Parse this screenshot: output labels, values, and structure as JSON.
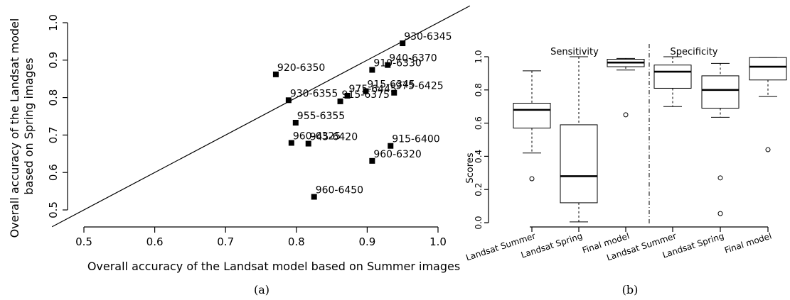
{
  "chart_data": [
    {
      "type": "scatter",
      "panel_label": "(a)",
      "xlabel": "Overall accuracy of the Landsat model based on Summer images",
      "ylabel_lines": [
        "Overall accuracy of the Landsat model",
        "based on Spring images"
      ],
      "xlim": [
        0.48,
        1.02
      ],
      "ylim": [
        0.49,
        1.02
      ],
      "xticks": [
        0.5,
        0.6,
        0.7,
        0.8,
        0.9,
        1.0
      ],
      "xtick_labels": [
        "0.5",
        "0.6",
        "0.7",
        "0.8",
        "0.9",
        "1.0"
      ],
      "yticks": [
        0.5,
        0.6,
        0.7,
        0.8,
        0.9,
        1.0
      ],
      "ytick_labels": [
        "0.5",
        "0.6",
        "0.7",
        "0.8",
        "0.9",
        "1.0"
      ],
      "reference_line": "y = x",
      "points": [
        {
          "label": "930-6345",
          "x": 0.95,
          "y": 0.945
        },
        {
          "label": "940-6370",
          "x": 0.929,
          "y": 0.887
        },
        {
          "label": "910-6330",
          "x": 0.907,
          "y": 0.874
        },
        {
          "label": "920-6350",
          "x": 0.771,
          "y": 0.862
        },
        {
          "label": "915-6345",
          "x": 0.898,
          "y": 0.817
        },
        {
          "label": "975-6425",
          "x": 0.938,
          "y": 0.813
        },
        {
          "label": "975-6445",
          "x": 0.872,
          "y": 0.805
        },
        {
          "label": "930-6355",
          "x": 0.789,
          "y": 0.793
        },
        {
          "label": "915-6375",
          "x": 0.862,
          "y": 0.79
        },
        {
          "label": "955-6355",
          "x": 0.799,
          "y": 0.733
        },
        {
          "label": "960-6325",
          "x": 0.793,
          "y": 0.679
        },
        {
          "label": "945-6420",
          "x": 0.817,
          "y": 0.677
        },
        {
          "label": "915-6400",
          "x": 0.933,
          "y": 0.671
        },
        {
          "label": "960-6320",
          "x": 0.907,
          "y": 0.631
        },
        {
          "label": "960-6450",
          "x": 0.825,
          "y": 0.535
        }
      ]
    },
    {
      "type": "box",
      "panel_label": "(b)",
      "ylabel": "Scores",
      "ylim": [
        0.0,
        1.0
      ],
      "yticks": [
        0.0,
        0.2,
        0.4,
        0.6,
        0.8,
        1.0
      ],
      "ytick_labels": [
        "0.0",
        "0.2",
        "0.4",
        "0.6",
        "0.8",
        "1.0"
      ],
      "groups": [
        {
          "name": "Sensitivity",
          "categories": [
            "Landsat Summer",
            "Landsat Spring",
            "Final model"
          ]
        },
        {
          "name": "Specificity",
          "categories": [
            "Landsat Summer",
            "Landsat Spring",
            "Final model"
          ]
        }
      ],
      "boxes": [
        {
          "group": "Sensitivity",
          "category": "Landsat Summer",
          "whisker_low": 0.42,
          "q1": 0.57,
          "median": 0.68,
          "q3": 0.72,
          "whisker_high": 0.915,
          "outliers": [
            0.265
          ]
        },
        {
          "group": "Sensitivity",
          "category": "Landsat Spring",
          "whisker_low": 0.005,
          "q1": 0.12,
          "median": 0.28,
          "q3": 0.59,
          "whisker_high": 1.0,
          "outliers": []
        },
        {
          "group": "Sensitivity",
          "category": "Final model",
          "whisker_low": 0.92,
          "q1": 0.94,
          "median": 0.965,
          "q3": 0.985,
          "whisker_high": 0.99,
          "outliers": [
            0.65
          ]
        },
        {
          "group": "Specificity",
          "category": "Landsat Summer",
          "whisker_low": 0.7,
          "q1": 0.81,
          "median": 0.91,
          "q3": 0.95,
          "whisker_high": 1.0,
          "outliers": []
        },
        {
          "group": "Specificity",
          "category": "Landsat Spring",
          "whisker_low": 0.635,
          "q1": 0.69,
          "median": 0.8,
          "q3": 0.885,
          "whisker_high": 0.96,
          "outliers": [
            0.27,
            0.055
          ]
        },
        {
          "group": "Specificity",
          "category": "Final model",
          "whisker_low": 0.76,
          "q1": 0.86,
          "median": 0.94,
          "q3": 0.995,
          "whisker_high": 0.995,
          "outliers": [
            0.44
          ]
        }
      ]
    }
  ]
}
